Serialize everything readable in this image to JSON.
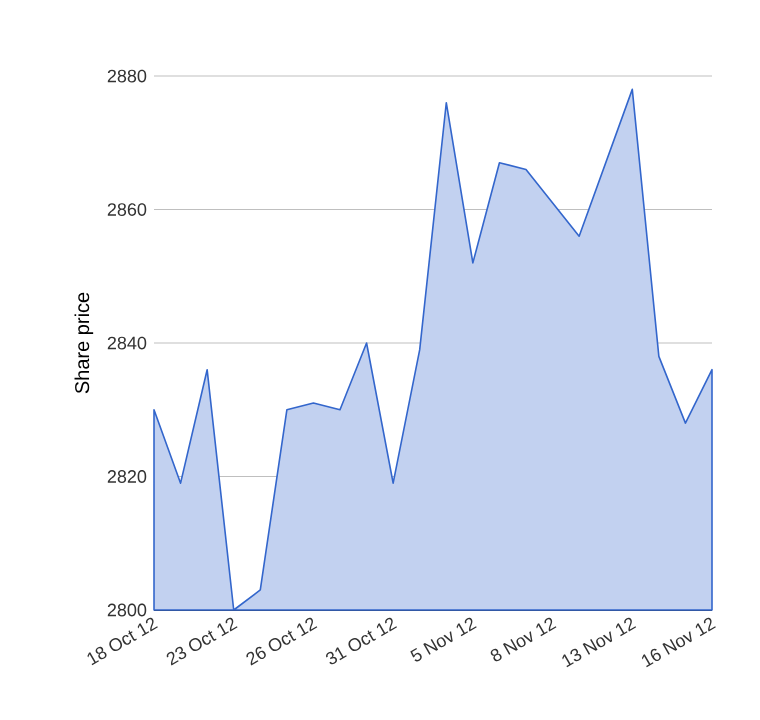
{
  "chart_data": {
    "type": "area",
    "ylabel": "Share price",
    "categories": [
      "18 Oct 12",
      null,
      null,
      "23 Oct 12",
      null,
      null,
      "26 Oct 12",
      null,
      null,
      "31 Oct 12",
      null,
      null,
      "5 Nov 12",
      null,
      null,
      "8 Nov 12",
      null,
      null,
      "13 Nov 12",
      null,
      null,
      "16 Nov 12"
    ],
    "series": [
      {
        "color": "#3366cc",
        "values": [
          2830,
          2819,
          2836,
          2800,
          2803,
          2830,
          2831,
          2830,
          2840,
          2819,
          2839,
          2876,
          2852,
          2867,
          2866,
          null,
          2856,
          null,
          2878,
          2838,
          2828,
          2836
        ]
      }
    ],
    "ylim": [
      2800,
      2880
    ],
    "yticks": [
      2800,
      2820,
      2840,
      2860,
      2880
    ],
    "grid": "y"
  }
}
